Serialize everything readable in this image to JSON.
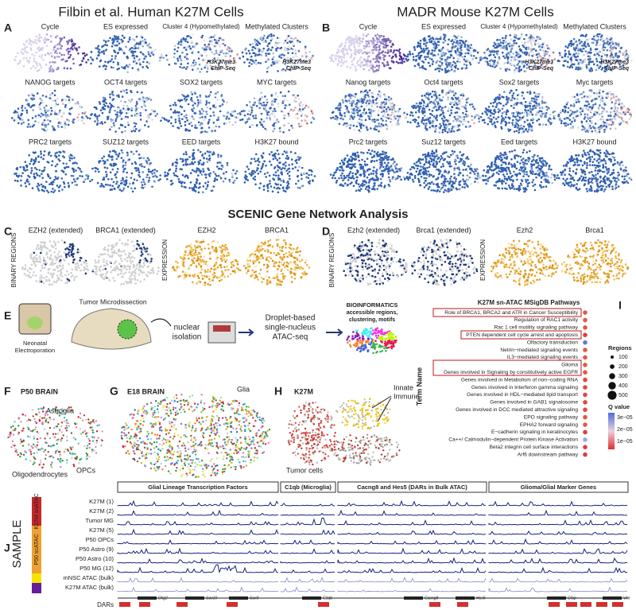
{
  "header": {
    "left": "Filbin et al. Human K27M Cells",
    "right": "MADR Mouse K27M Cells",
    "center": "SCENIC Gene Network Analysis"
  },
  "panel_a": {
    "label": "A",
    "tiles": [
      "Cycle",
      "ES expressed",
      "Cluster 4 (Hypomethylated)",
      "Methylated Clusters",
      "NANOG targets",
      "OCT4 targets",
      "SOX2 targets",
      "MYC targets",
      "PRC2 targets",
      "SUZ12 targets",
      "EED targets",
      "H3K27 bound"
    ],
    "annotation": [
      "H3K27me3",
      "ChIP-Seq"
    ]
  },
  "panel_b": {
    "label": "B",
    "tiles": [
      "Cycle",
      "ES expressed",
      "Cluster 4 (Hypomethylated)",
      "Methylated Clusters",
      "Nanog targets",
      "Oct4 targets",
      "Sox2 targets",
      "Myc targets",
      "Prc2 targets",
      "Suz12 targets",
      "Eed targets",
      "H3K27 bound"
    ],
    "annotation": [
      "H3K27me3",
      "ChIP-Seq"
    ]
  },
  "panel_c": {
    "label": "C",
    "tiles": [
      "EZH2 (extended)",
      "BRCA1 (extended)",
      "EZH2",
      "BRCA1"
    ],
    "side": [
      "BINARY REGIONS",
      "EXPRESSION"
    ]
  },
  "panel_d": {
    "label": "D",
    "tiles": [
      "Ezh2 (extended)",
      "Brca1 (extended)",
      "Ezh2",
      "Brca1"
    ],
    "side": [
      "BINARY REGIONS",
      "EXPRESSION"
    ]
  },
  "panel_e": {
    "label": "E",
    "electroporation": [
      "Neonatal",
      "Electroporation"
    ],
    "dissection": "Tumor Microdissection",
    "isolation": [
      "nuclear",
      "isolation"
    ],
    "sequencing": [
      "Droplet-based",
      "single-nucleus",
      "ATAC-seq"
    ],
    "bioinformatics": [
      "BIOINFORMATICS",
      "accessible regions,",
      "clustering, motifs"
    ]
  },
  "panel_f": {
    "label": "F",
    "title": "P50 BRAIN",
    "labels": [
      "Astroglia",
      "Oligodendrocytes",
      "OPCs"
    ]
  },
  "panel_g": {
    "label": "G",
    "title": "E18 BRAIN",
    "labels": [
      "Glia"
    ]
  },
  "panel_h": {
    "label": "H",
    "title": "K27M",
    "labels": [
      "Innate",
      "Immune",
      "Tumor cells"
    ]
  },
  "panel_i": {
    "label": "I",
    "title": "K27M sn-ATAC MSigDB Pathways",
    "axis_label": "Term Name",
    "terms": [
      "Role of BRCA1, BRCA2 and ATR in Cancer Susceptibility",
      "Regulation of RAC1 activity",
      "Rac 1 cell motility signaling pathway",
      "PTEN dependent cell cycle arrest and apoptosis",
      "Olfactory transduction",
      "Netrin−mediated signaling events",
      "IL3−mediated signaling events",
      "Glioma",
      "Genes involved in Signaling by constitutively active EGFR",
      "Genes involved in Metabolism of non−coding RNA",
      "Genes involved in Interferon gamma signaling",
      "Genes involved in HDL−mediated lipid transport",
      "Genes involved in GAB1 signalosome",
      "Genes involved in DCC mediated attractive signaling",
      "EPO signaling pathway",
      "EPHA2 forward signaling",
      "E−cadherin signaling in keratinocytes",
      "Ca++/ Calmodulin−dependent Protein Kinase Activation",
      "Beta2 integrin cell surface interactions",
      "Arf6 downstream pathway"
    ],
    "size_legend": {
      "title": "Regions",
      "labels": [
        "100",
        "200",
        "300",
        "400",
        "500"
      ]
    },
    "color_legend": {
      "title": "Q value",
      "labels": [
        "3e−05",
        "2e−05",
        "1e−05"
      ]
    }
  },
  "panel_j": {
    "label": "J",
    "groups": [
      "Glial Lineage Transcription Factors",
      "C1qb (Microglia)",
      "Cacng8 and Hes5 (DARs in Bulk ATAC)",
      "Glioma/Glial Marker Genes"
    ],
    "rows": [
      "K27M (1)",
      "K27M (2)",
      "Tumor MG",
      "K27M (5)",
      "P50 OPCs",
      "P50 Astro (9)",
      "P50 Astro (10)",
      "P50 MG (12)",
      "mNSC ATAC (bulk)",
      "K27M ATAC (bulk)"
    ],
    "sample_label": "SAMPLE",
    "sample_groups": [
      "K27M snATAC",
      "P50 scATAC"
    ],
    "genes": [
      "Olig2",
      "Sox10",
      "Sox9",
      "C1qb",
      "Cacng8",
      "Hes5",
      "Gfap",
      "Vim"
    ],
    "dars_label": "DARs"
  }
}
